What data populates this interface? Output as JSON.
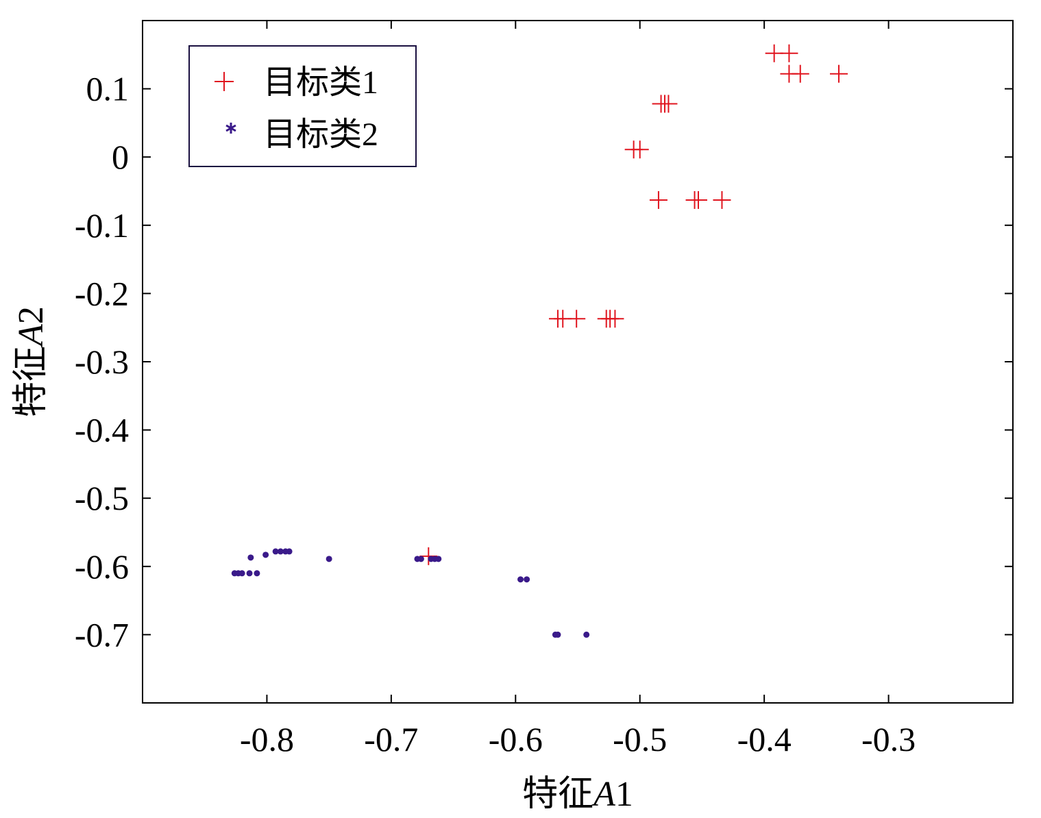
{
  "chart_data": {
    "type": "scatter",
    "title": "",
    "xlabel": "特征A1",
    "xlabel_parts": {
      "prefix": "特征",
      "italic": "A",
      "suffix": "1"
    },
    "ylabel": "特征A2",
    "ylabel_parts": {
      "prefix": "特征",
      "italic": "A",
      "suffix": "2"
    },
    "xlim": [
      -0.9,
      -0.2
    ],
    "ylim": [
      -0.8,
      0.2
    ],
    "xticks": [
      -0.8,
      -0.7,
      -0.6,
      -0.5,
      -0.4,
      -0.3
    ],
    "xtick_labels": [
      "-0.8",
      "-0.7",
      "-0.6",
      "-0.5",
      "-0.4",
      "-0.3"
    ],
    "yticks": [
      0.1,
      0,
      -0.1,
      -0.2,
      -0.3,
      -0.4,
      -0.5,
      -0.6,
      -0.7
    ],
    "ytick_labels": [
      "0.1",
      "0",
      "-0.1",
      "-0.2",
      "-0.3",
      "-0.4",
      "-0.5",
      "-0.6",
      "-0.7"
    ],
    "grid": false,
    "legend": "top-left",
    "series": [
      {
        "name": "目标类1",
        "marker": "plus",
        "color": "#e0141e",
        "points": [
          [
            -0.392,
            0.152
          ],
          [
            -0.38,
            0.152
          ],
          [
            -0.38,
            0.122
          ],
          [
            -0.371,
            0.122
          ],
          [
            -0.34,
            0.122
          ],
          [
            -0.483,
            0.078
          ],
          [
            -0.48,
            0.078
          ],
          [
            -0.477,
            0.078
          ],
          [
            -0.505,
            0.011
          ],
          [
            -0.5,
            0.011
          ],
          [
            -0.485,
            -0.063
          ],
          [
            -0.456,
            -0.063
          ],
          [
            -0.453,
            -0.063
          ],
          [
            -0.434,
            -0.063
          ],
          [
            -0.566,
            -0.237
          ],
          [
            -0.562,
            -0.237
          ],
          [
            -0.551,
            -0.237
          ],
          [
            -0.527,
            -0.237
          ],
          [
            -0.524,
            -0.237
          ],
          [
            -0.52,
            -0.237
          ],
          [
            -0.67,
            -0.585
          ]
        ]
      },
      {
        "name": "目标类2",
        "marker": "asterisk",
        "color": "#3a1a8a",
        "points": [
          [
            -0.826,
            -0.61
          ],
          [
            -0.823,
            -0.61
          ],
          [
            -0.82,
            -0.61
          ],
          [
            -0.814,
            -0.61
          ],
          [
            -0.808,
            -0.61
          ],
          [
            -0.813,
            -0.587
          ],
          [
            -0.801,
            -0.583
          ],
          [
            -0.793,
            -0.578
          ],
          [
            -0.789,
            -0.578
          ],
          [
            -0.785,
            -0.578
          ],
          [
            -0.782,
            -0.578
          ],
          [
            -0.75,
            -0.589
          ],
          [
            -0.679,
            -0.589
          ],
          [
            -0.676,
            -0.589
          ],
          [
            -0.668,
            -0.589
          ],
          [
            -0.665,
            -0.589
          ],
          [
            -0.662,
            -0.589
          ],
          [
            -0.596,
            -0.619
          ],
          [
            -0.591,
            -0.619
          ],
          [
            -0.568,
            -0.7
          ],
          [
            -0.566,
            -0.7
          ],
          [
            -0.543,
            -0.7
          ]
        ]
      }
    ]
  }
}
